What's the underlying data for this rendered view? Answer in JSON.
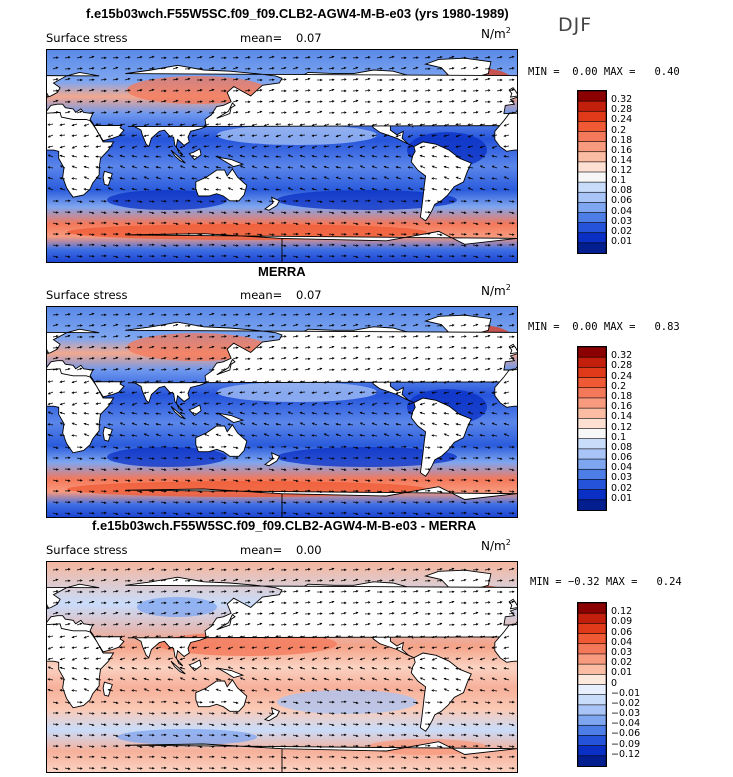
{
  "season": "DJF",
  "panels": [
    {
      "title": "f.e15b03wch.F55W5SC.f09_f09.CLB2-AGW4-M-B-e03 (yrs 1980-1989)",
      "variable": "Surface stress",
      "mean_label": "mean=",
      "mean_value": "0.07",
      "units_base": "N/m",
      "units_exp": "2",
      "min_label": "MIN =",
      "min_value": "0.00",
      "max_label": "MAX =",
      "max_value": "0.40",
      "colorbar_levels": [
        "0.32",
        "0.28",
        "0.24",
        "0.2",
        "0.18",
        "0.16",
        "0.14",
        "0.12",
        "0.1",
        "0.08",
        "0.06",
        "0.04",
        "0.03",
        "0.02",
        "0.01"
      ],
      "colorbar_colors": [
        "#8b0000",
        "#c2200c",
        "#e03a1a",
        "#ef5a34",
        "#f4785a",
        "#f89a7e",
        "#fbbca4",
        "#fde0d2",
        "#f7f7f7",
        "#c9dcfa",
        "#a9c4f6",
        "#7fa6f0",
        "#4d7ee8",
        "#2554db",
        "#0a2fc4",
        "#021e8f"
      ],
      "map_palette": "positive"
    },
    {
      "title": "MERRA",
      "variable": "Surface stress",
      "mean_label": "mean=",
      "mean_value": "0.07",
      "units_base": "N/m",
      "units_exp": "2",
      "min_label": "MIN =",
      "min_value": "0.00",
      "max_label": "MAX =",
      "max_value": "0.83",
      "colorbar_levels": [
        "0.32",
        "0.28",
        "0.24",
        "0.2",
        "0.18",
        "0.16",
        "0.14",
        "0.12",
        "0.1",
        "0.08",
        "0.06",
        "0.04",
        "0.03",
        "0.02",
        "0.01"
      ],
      "colorbar_colors": [
        "#8b0000",
        "#c2200c",
        "#e03a1a",
        "#ef5a34",
        "#f4785a",
        "#f89a7e",
        "#fbbca4",
        "#fde0d2",
        "#f7f7f7",
        "#c9dcfa",
        "#a9c4f6",
        "#7fa6f0",
        "#4d7ee8",
        "#2554db",
        "#0a2fc4",
        "#021e8f"
      ],
      "map_palette": "positive"
    },
    {
      "title": "f.e15b03wch.F55W5SC.f09_f09.CLB2-AGW4-M-B-e03 - MERRA",
      "variable": "Surface stress",
      "mean_label": "mean=",
      "mean_value": "0.00",
      "units_base": "N/m",
      "units_exp": "2",
      "min_label": "MIN =",
      "min_value": "−0.32",
      "max_label": "MAX =",
      "max_value": "0.24",
      "colorbar_levels": [
        "0.12",
        "0.09",
        "0.06",
        "0.04",
        "0.03",
        "0.02",
        "0.01",
        "0",
        "−0.01",
        "−0.02",
        "−0.03",
        "−0.04",
        "−0.06",
        "−0.09",
        "−0.12"
      ],
      "colorbar_colors": [
        "#8b0000",
        "#c2200c",
        "#e03a1a",
        "#ef5a34",
        "#f4785a",
        "#f89a7e",
        "#fbbca4",
        "#fde8dc",
        "#e8efff",
        "#c9dcfa",
        "#a9c4f6",
        "#7fa6f0",
        "#4d7ee8",
        "#2554db",
        "#0a2fc4",
        "#021e8f"
      ],
      "map_palette": "diff"
    }
  ]
}
